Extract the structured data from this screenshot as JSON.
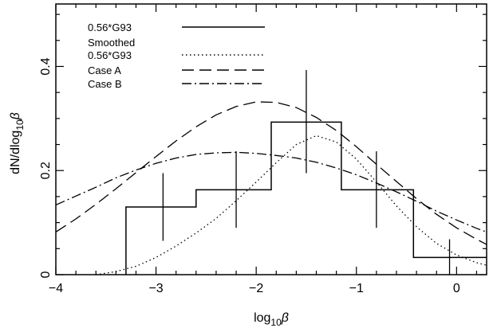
{
  "chart_data": {
    "type": "line",
    "title": "",
    "xlabel_main": "log",
    "xlabel_sub": "10",
    "xlabel_sym": "β",
    "ylabel_main": "dN/dlog",
    "ylabel_sub": "10",
    "ylabel_sym": "β",
    "xlim": [
      -4.0,
      0.3
    ],
    "ylim": [
      0.0,
      0.52
    ],
    "xticks": [
      -4,
      -3,
      -2,
      -1,
      0
    ],
    "xtick_labels": [
      "−4",
      "−3",
      "−2",
      "−1",
      "0"
    ],
    "yticks": [
      0,
      0.2,
      0.4
    ],
    "ytick_labels": [
      "0",
      "0.2",
      "0.4"
    ],
    "grid": false,
    "legend_position": "top-left",
    "legend": [
      {
        "label": "0.56*G93",
        "style": "solid"
      },
      {
        "label": "Smoothed",
        "style": "none"
      },
      {
        "label": "0.56*G93",
        "style": "dotted"
      },
      {
        "label": "Case A",
        "style": "dashed"
      },
      {
        "label": "Case B",
        "style": "dashdot"
      }
    ],
    "histogram": {
      "name": "0.56*G93",
      "bin_edges": [
        -3.3,
        -2.6,
        -1.85,
        -1.15,
        -0.43,
        0.3
      ],
      "values": [
        0.13,
        0.163,
        0.293,
        0.163,
        0.033
      ]
    },
    "error_bars": [
      {
        "x": -2.93,
        "y": 0.13,
        "lo": 0.065,
        "hi": 0.195
      },
      {
        "x": -2.2,
        "y": 0.163,
        "lo": 0.09,
        "hi": 0.237
      },
      {
        "x": -1.5,
        "y": 0.293,
        "lo": 0.195,
        "hi": 0.393
      },
      {
        "x": -0.8,
        "y": 0.163,
        "lo": 0.09,
        "hi": 0.237
      },
      {
        "x": -0.07,
        "y": 0.033,
        "lo": 0.0,
        "hi": 0.068
      }
    ],
    "series": [
      {
        "name": "Smoothed 0.56*G93",
        "style": "dotted",
        "x": [
          -3.6,
          -3.4,
          -3.2,
          -3.0,
          -2.8,
          -2.6,
          -2.4,
          -2.2,
          -2.0,
          -1.8,
          -1.6,
          -1.4,
          -1.2,
          -1.0,
          -0.8,
          -0.6,
          -0.4,
          -0.2,
          0.0,
          0.2,
          0.3
        ],
        "y": [
          0.0,
          0.006,
          0.016,
          0.033,
          0.055,
          0.08,
          0.108,
          0.142,
          0.178,
          0.215,
          0.25,
          0.267,
          0.255,
          0.222,
          0.178,
          0.132,
          0.092,
          0.06,
          0.038,
          0.023,
          0.018
        ]
      },
      {
        "name": "Case A",
        "style": "dashed",
        "x": [
          -4.0,
          -3.8,
          -3.6,
          -3.4,
          -3.2,
          -3.0,
          -2.8,
          -2.6,
          -2.4,
          -2.2,
          -2.0,
          -1.8,
          -1.6,
          -1.4,
          -1.2,
          -1.0,
          -0.8,
          -0.6,
          -0.4,
          -0.2,
          0.0,
          0.2,
          0.3
        ],
        "y": [
          0.082,
          0.107,
          0.135,
          0.165,
          0.196,
          0.227,
          0.257,
          0.284,
          0.307,
          0.323,
          0.332,
          0.331,
          0.321,
          0.302,
          0.277,
          0.246,
          0.212,
          0.179,
          0.146,
          0.116,
          0.09,
          0.068,
          0.058
        ]
      },
      {
        "name": "Case B",
        "style": "dashdot",
        "x": [
          -4.0,
          -3.8,
          -3.6,
          -3.4,
          -3.2,
          -3.0,
          -2.8,
          -2.6,
          -2.4,
          -2.2,
          -2.0,
          -1.8,
          -1.6,
          -1.4,
          -1.2,
          -1.0,
          -0.8,
          -0.6,
          -0.4,
          -0.2,
          0.0,
          0.2,
          0.3
        ],
        "y": [
          0.134,
          0.151,
          0.168,
          0.186,
          0.201,
          0.214,
          0.224,
          0.231,
          0.234,
          0.235,
          0.233,
          0.229,
          0.224,
          0.216,
          0.205,
          0.192,
          0.176,
          0.159,
          0.141,
          0.122,
          0.105,
          0.089,
          0.082
        ]
      }
    ]
  }
}
